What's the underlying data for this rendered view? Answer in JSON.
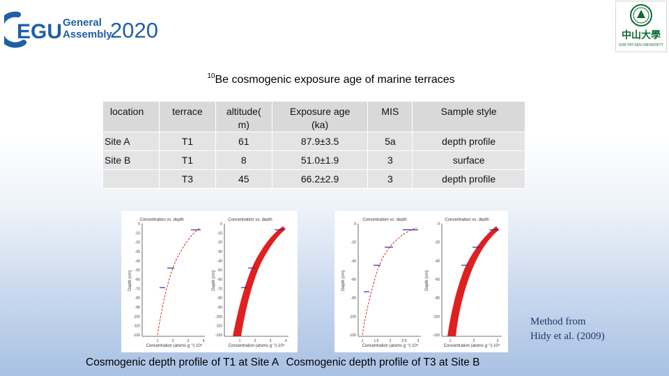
{
  "header": {
    "egu": {
      "brand_short": "EGU",
      "name_line1": "General",
      "name_line2": "Assembly",
      "year": "2020",
      "colors": {
        "blue": "#1f5fa8",
        "grey": "#9a9a9a"
      }
    },
    "university": {
      "chinese_name": "中山大學",
      "english_name": "SUN YAT-SEN UNIVERSITY",
      "color": "#0b6b2e"
    }
  },
  "title": {
    "superscript": "10",
    "text": "Be cosmogenic exposure age of marine terraces"
  },
  "table": {
    "headers": [
      "location",
      "terrace",
      "altitude(\nm)",
      "Exposure age\n(ka)",
      "MIS",
      "Sample style"
    ],
    "rows": [
      [
        "Site A",
        "T1",
        "61",
        "87.9±3.5",
        "5a",
        "depth profile"
      ],
      [
        "Site B",
        "T1",
        "8",
        "51.0±1.9",
        "3",
        "surface"
      ],
      [
        "",
        "T3",
        "45",
        "66.2±2.9",
        "3",
        "depth profile"
      ]
    ]
  },
  "plots": {
    "panel_title": "Concentration vs. depth",
    "y_label": "Depth (cm)",
    "x_label": "Concentration (atoms g⁻¹)·10⁵",
    "site_a": {
      "y_ticks": [
        "0",
        "-10",
        "-20",
        "-30",
        "-40",
        "-50",
        "-60",
        "-70",
        "-80",
        "-90",
        "-100",
        "-110",
        "-120"
      ],
      "x_ticks": [
        "1",
        "2",
        "3",
        "4"
      ]
    },
    "site_b": {
      "y_ticks": [
        "0",
        "-20",
        "-40",
        "-60",
        "-80",
        "-100",
        "-120"
      ],
      "x_ticks_left": [
        "1",
        "1.5",
        "2",
        "2.5",
        "3"
      ],
      "x_ticks_right": [
        "1",
        "2",
        "3"
      ]
    },
    "colors": {
      "model": "#e02020",
      "data": "#2a2aa0"
    }
  },
  "method_note": {
    "line1": "Method from",
    "line2": "Hidy et al. (2009)"
  },
  "captions": {
    "left": "Cosmogenic depth profile of T1 at Site A",
    "right": "Cosmogenic depth profile of T3 at Site B"
  }
}
